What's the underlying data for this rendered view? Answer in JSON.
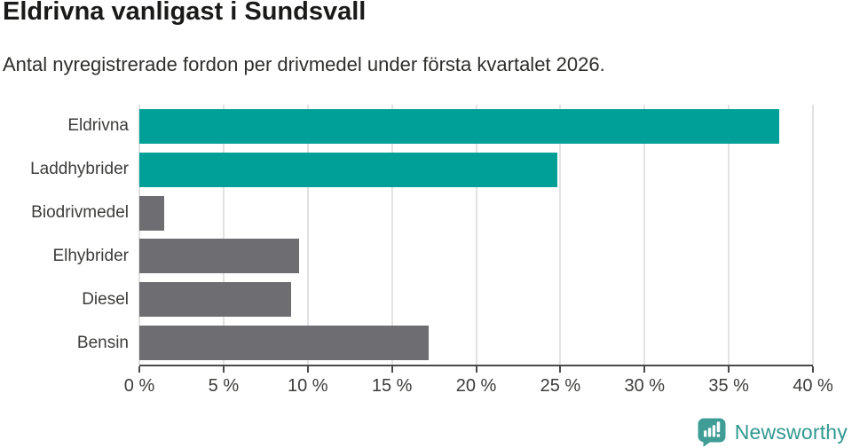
{
  "header": {
    "title": "Eldrivna vanligast i Sundsvall",
    "subtitle": "Antal nyregistrerade fordon per drivmedel under första kvartalet 2026."
  },
  "chart_data": {
    "type": "bar",
    "orientation": "horizontal",
    "title": "Eldrivna vanligast i Sundsvall",
    "categories": [
      "Eldrivna",
      "Laddhybrider",
      "Biodrivmedel",
      "Elhybrider",
      "Diesel",
      "Bensin"
    ],
    "values": [
      38.0,
      24.8,
      1.5,
      9.5,
      9.0,
      17.2
    ],
    "unit": "%",
    "xlim": [
      0,
      40
    ],
    "x_ticks": [
      0,
      5,
      10,
      15,
      20,
      25,
      30,
      35,
      40
    ],
    "x_tick_labels": [
      "0 %",
      "5 %",
      "10 %",
      "15 %",
      "20 %",
      "25 %",
      "30 %",
      "35 %",
      "40 %"
    ],
    "bar_colors": [
      "#00a099",
      "#00a099",
      "#6d6d72",
      "#6d6d72",
      "#6d6d72",
      "#6d6d72"
    ],
    "grid": true,
    "legend": null,
    "xlabel": "",
    "ylabel": ""
  },
  "colors": {
    "highlight": "#00a099",
    "neutral": "#6d6d72",
    "gridline": "#e2e2e2",
    "axis": "#4a4a4a",
    "logo": "#3f9d95",
    "logo_text": "#30988f"
  },
  "footer": {
    "brand": "Newsworthy"
  }
}
